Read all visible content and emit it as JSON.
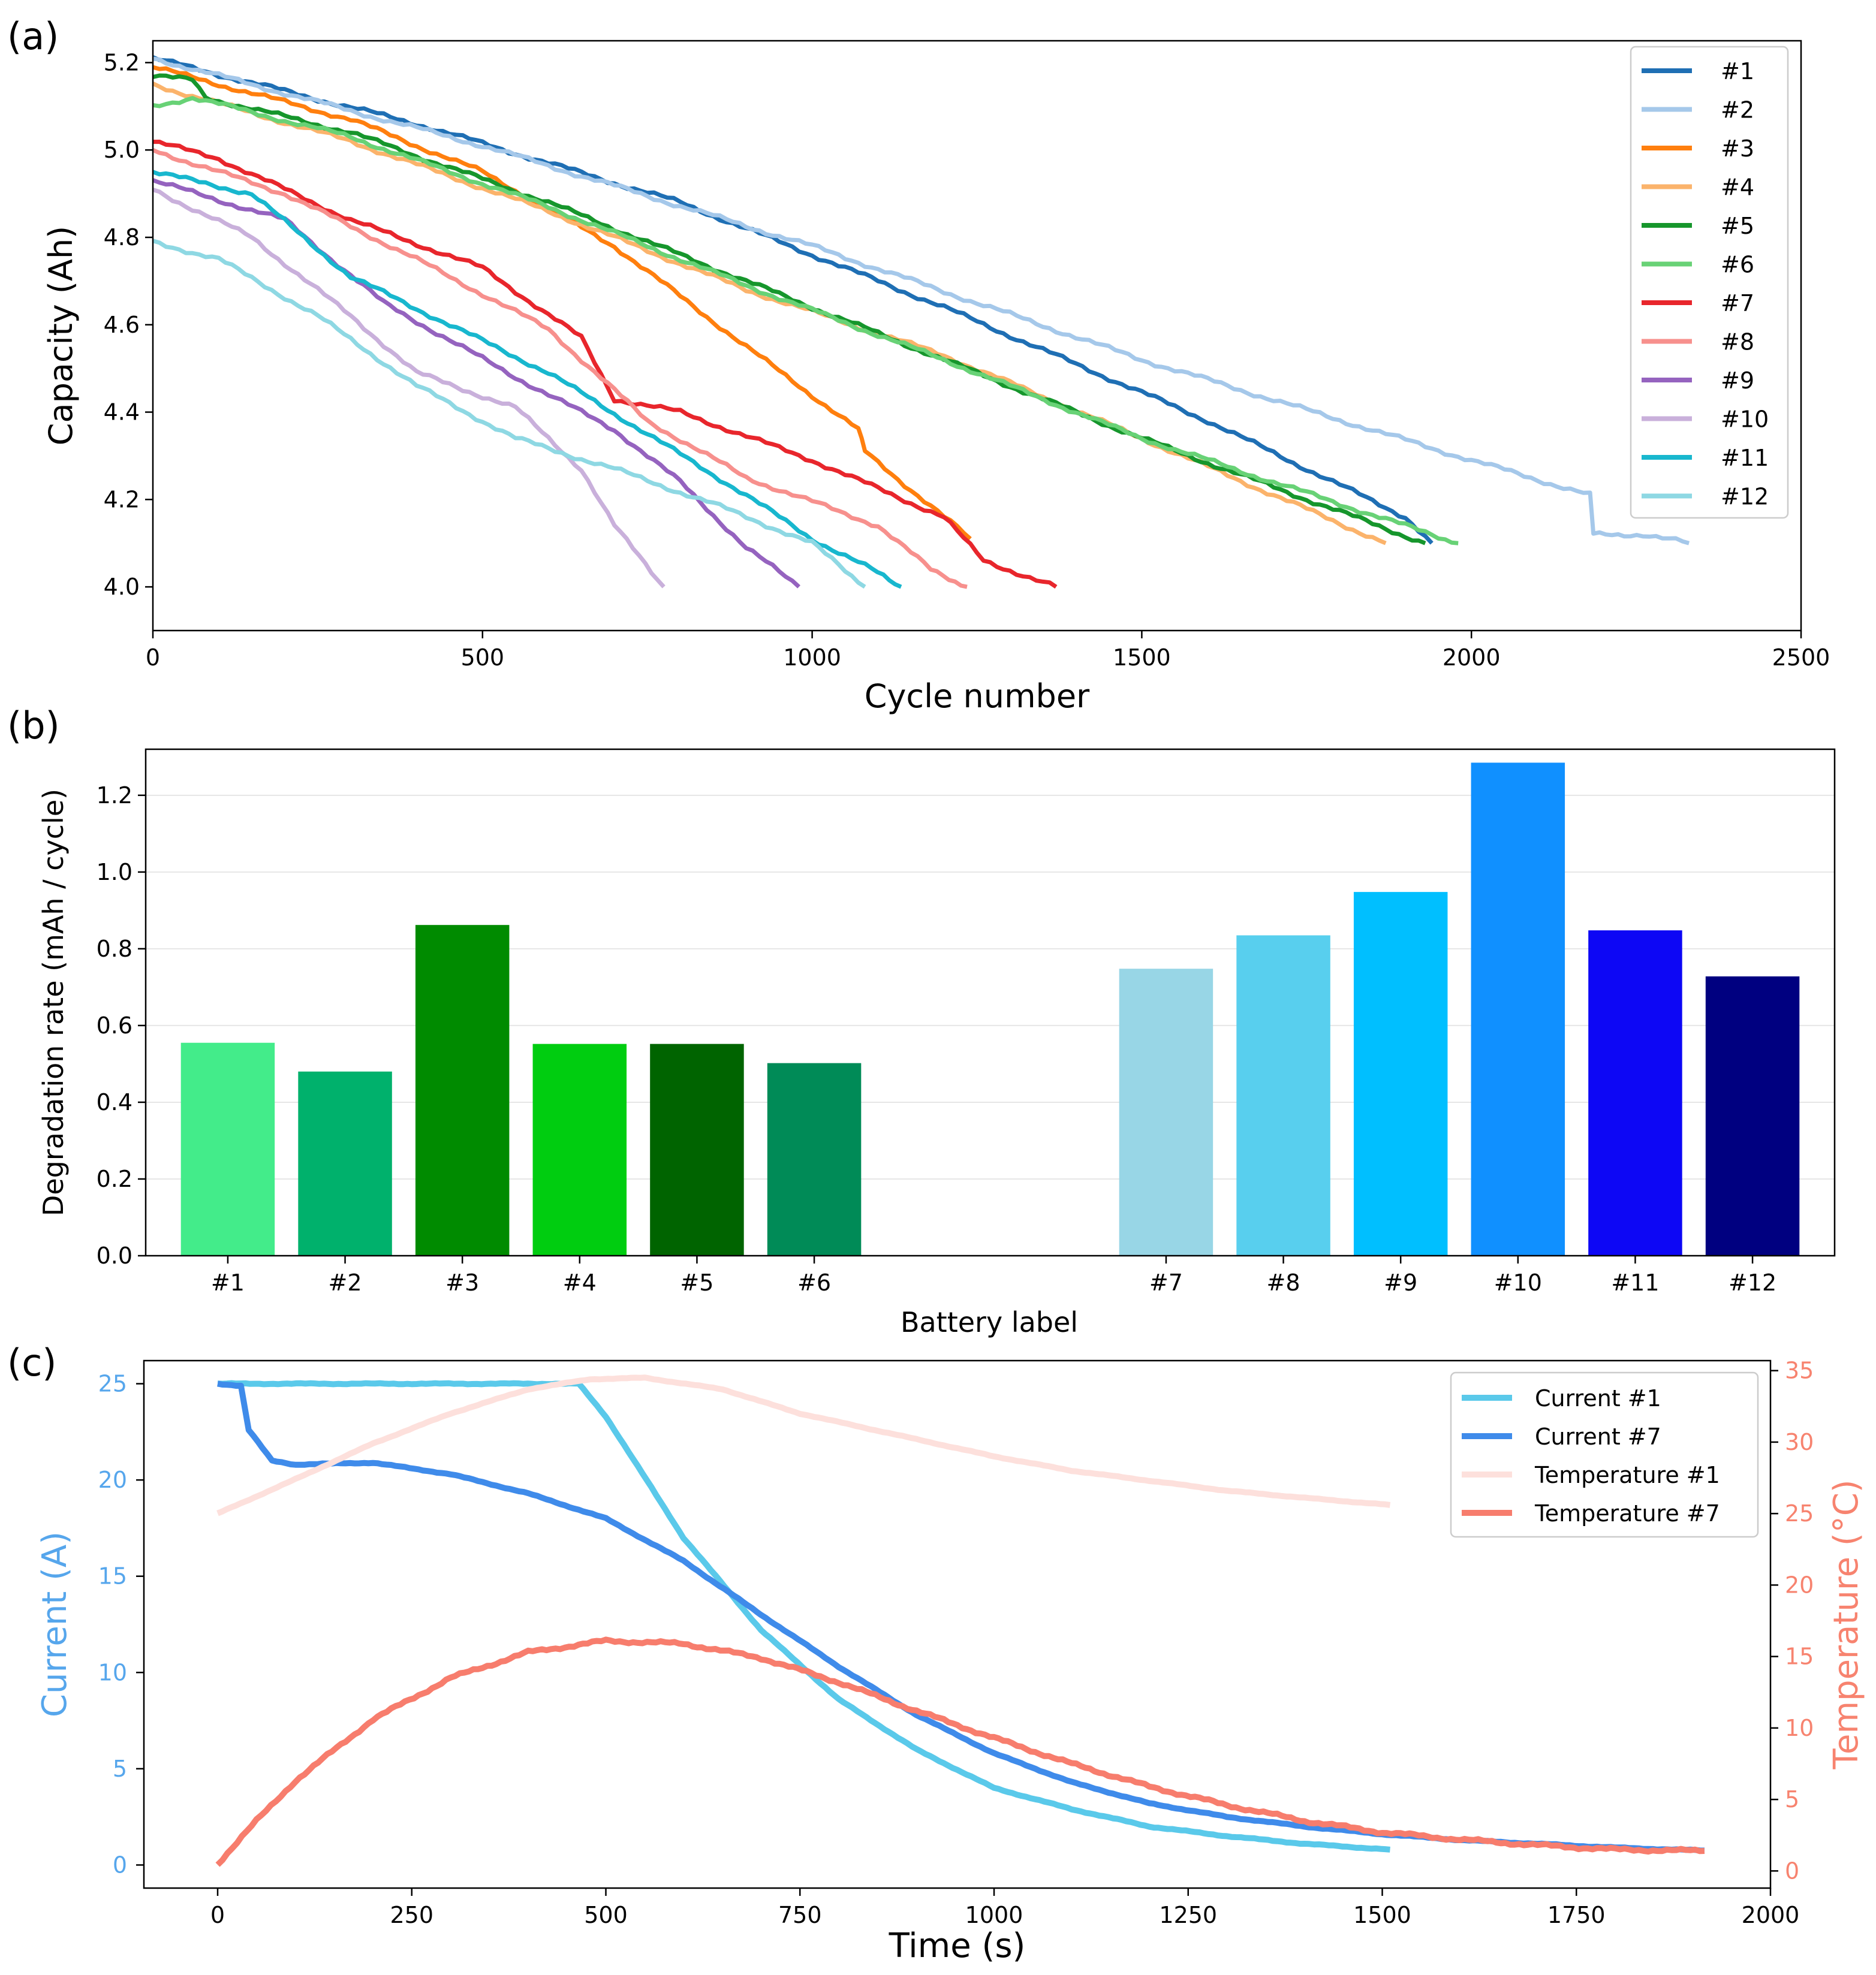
{
  "figure": {
    "panel_labels": [
      "(a)",
      "(b)",
      "(c)"
    ]
  },
  "chart_data": [
    {
      "type": "line",
      "panel": "(a)",
      "title": "",
      "xlabel": "Cycle number",
      "ylabel": "Capacity (Ah)",
      "xlim": [
        0,
        2500
      ],
      "ylim": [
        3.9,
        5.25
      ],
      "xticks": [
        0,
        500,
        1000,
        1500,
        2000,
        2500
      ],
      "yticks": [
        4.0,
        4.2,
        4.4,
        4.6,
        4.8,
        5.0,
        5.2
      ],
      "ytick_labels": [
        "4.0",
        "4.2",
        "4.4",
        "4.6",
        "4.8",
        "5.0",
        "5.2"
      ],
      "legend_position": "top-right",
      "series": [
        {
          "name": "#1",
          "color": "#1f6fb4",
          "points": [
            [
              0,
              5.21
            ],
            [
              400,
              5.06
            ],
            [
              800,
              4.88
            ],
            [
              1200,
              4.64
            ],
            [
              1600,
              4.38
            ],
            [
              1900,
              4.16
            ],
            [
              1940,
              4.1
            ]
          ]
        },
        {
          "name": "#2",
          "color": "#a5c8ea",
          "points": [
            [
              0,
              5.21
            ],
            [
              500,
              5.01
            ],
            [
              1000,
              4.78
            ],
            [
              1500,
              4.52
            ],
            [
              2000,
              4.29
            ],
            [
              2180,
              4.21
            ],
            [
              2185,
              4.12
            ],
            [
              2260,
              4.12
            ],
            [
              2330,
              4.1
            ]
          ]
        },
        {
          "name": "#3",
          "color": "#ff7f0e",
          "points": [
            [
              0,
              5.19
            ],
            [
              300,
              5.07
            ],
            [
              500,
              4.95
            ],
            [
              700,
              4.78
            ],
            [
              900,
              4.55
            ],
            [
              1070,
              4.36
            ],
            [
              1080,
              4.31
            ],
            [
              1240,
              4.11
            ]
          ]
        },
        {
          "name": "#4",
          "color": "#fbb36b",
          "points": [
            [
              0,
              5.15
            ],
            [
              300,
              5.02
            ],
            [
              600,
              4.86
            ],
            [
              900,
              4.68
            ],
            [
              1200,
              4.53
            ],
            [
              1500,
              4.34
            ],
            [
              1870,
              4.1
            ]
          ]
        },
        {
          "name": "#5",
          "color": "#16962c",
          "points": [
            [
              0,
              5.17
            ],
            [
              60,
              5.16
            ],
            [
              80,
              5.12
            ],
            [
              300,
              5.04
            ],
            [
              600,
              4.88
            ],
            [
              900,
              4.7
            ],
            [
              1200,
              4.52
            ],
            [
              1500,
              4.34
            ],
            [
              1930,
              4.1
            ]
          ]
        },
        {
          "name": "#6",
          "color": "#68d276",
          "points": [
            [
              0,
              5.1
            ],
            [
              60,
              5.12
            ],
            [
              300,
              5.03
            ],
            [
              600,
              4.87
            ],
            [
              900,
              4.69
            ],
            [
              1200,
              4.52
            ],
            [
              1500,
              4.34
            ],
            [
              1980,
              4.1
            ]
          ]
        },
        {
          "name": "#7",
          "color": "#e8262c",
          "points": [
            [
              0,
              5.02
            ],
            [
              100,
              4.98
            ],
            [
              300,
              4.84
            ],
            [
              500,
              4.73
            ],
            [
              650,
              4.57
            ],
            [
              700,
              4.43
            ],
            [
              800,
              4.4
            ],
            [
              1000,
              4.29
            ],
            [
              1200,
              4.16
            ],
            [
              1260,
              4.06
            ],
            [
              1370,
              4.0
            ]
          ]
        },
        {
          "name": "#8",
          "color": "#f7908d",
          "points": [
            [
              0,
              5.0
            ],
            [
              200,
              4.9
            ],
            [
              400,
              4.75
            ],
            [
              600,
              4.59
            ],
            [
              750,
              4.38
            ],
            [
              900,
              4.25
            ],
            [
              1100,
              4.14
            ],
            [
              1180,
              4.04
            ],
            [
              1235,
              4.0
            ]
          ]
        },
        {
          "name": "#9",
          "color": "#9563bf",
          "points": [
            [
              0,
              4.93
            ],
            [
              200,
              4.84
            ],
            [
              350,
              4.65
            ],
            [
              550,
              4.48
            ],
            [
              700,
              4.36
            ],
            [
              800,
              4.24
            ],
            [
              900,
              4.09
            ],
            [
              980,
              4.0
            ]
          ]
        },
        {
          "name": "#10",
          "color": "#c9b0db",
          "points": [
            [
              0,
              4.91
            ],
            [
              150,
              4.8
            ],
            [
              300,
              4.62
            ],
            [
              400,
              4.49
            ],
            [
              550,
              4.41
            ],
            [
              650,
              4.27
            ],
            [
              700,
              4.14
            ],
            [
              775,
              4.0
            ]
          ]
        },
        {
          "name": "#11",
          "color": "#18b7ce",
          "points": [
            [
              0,
              4.95
            ],
            [
              150,
              4.9
            ],
            [
              300,
              4.71
            ],
            [
              450,
              4.6
            ],
            [
              600,
              4.49
            ],
            [
              750,
              4.35
            ],
            [
              900,
              4.21
            ],
            [
              1000,
              4.11
            ],
            [
              1090,
              4.04
            ],
            [
              1135,
              4.0
            ]
          ]
        },
        {
          "name": "#12",
          "color": "#8ed8e3",
          "points": [
            [
              0,
              4.79
            ],
            [
              100,
              4.75
            ],
            [
              250,
              4.62
            ],
            [
              400,
              4.46
            ],
            [
              550,
              4.34
            ],
            [
              700,
              4.27
            ],
            [
              850,
              4.19
            ],
            [
              1000,
              4.1
            ],
            [
              1080,
              4.0
            ]
          ]
        }
      ]
    },
    {
      "type": "bar",
      "panel": "(b)",
      "title": "",
      "xlabel": "Battery label",
      "ylabel": "Degradation rate (mAh / cycle)",
      "ylim": [
        0,
        1.32
      ],
      "yticks": [
        0.0,
        0.2,
        0.4,
        0.6,
        0.8,
        1.0,
        1.2
      ],
      "ytick_labels": [
        "0.0",
        "0.2",
        "0.4",
        "0.6",
        "0.8",
        "1.0",
        "1.2"
      ],
      "grid": true,
      "categories": [
        "#1",
        "#2",
        "#3",
        "#4",
        "#5",
        "#6",
        "#7",
        "#8",
        "#9",
        "#10",
        "#11",
        "#12"
      ],
      "positions": [
        0,
        1,
        2,
        3,
        4,
        5,
        8,
        9,
        10,
        11,
        12,
        13
      ],
      "xlim": [
        -0.7,
        13.7
      ],
      "values": [
        0.555,
        0.48,
        0.862,
        0.552,
        0.552,
        0.502,
        0.748,
        0.835,
        0.948,
        1.285,
        0.848,
        0.728
      ],
      "colors": [
        "#43ec8a",
        "#00b16c",
        "#008b00",
        "#00cd10",
        "#006400",
        "#008b57",
        "#98d6e6",
        "#58cfee",
        "#00bfff",
        "#1090ff",
        "#0d07f5",
        "#000080"
      ]
    },
    {
      "type": "line",
      "panel": "(c)",
      "title": "",
      "xlabel": "Time (s)",
      "ylabel": "Current (A)",
      "ylabel_right": "Temperature (°C)",
      "xlim": [
        -95,
        2000
      ],
      "ylim": [
        -1.2,
        26.2
      ],
      "ylim_right": [
        -1.2,
        35.7
      ],
      "xticks": [
        0,
        250,
        500,
        750,
        1000,
        1250,
        1500,
        1750,
        2000
      ],
      "yticks": [
        0,
        5,
        10,
        15,
        20,
        25
      ],
      "yticks_right": [
        0,
        5,
        10,
        15,
        20,
        25,
        30,
        35
      ],
      "ylabel_color": "#56a6ec",
      "ylabel_right_color": "#f7836f",
      "legend_position": "top-right",
      "series": [
        {
          "name": "Current #1",
          "axis": "left",
          "color": "#5ac9ea",
          "points": [
            [
              0,
              25.0
            ],
            [
              465,
              25.0
            ],
            [
              500,
              23.3
            ],
            [
              600,
              17.0
            ],
            [
              700,
              12.2
            ],
            [
              800,
              8.6
            ],
            [
              900,
              6.0
            ],
            [
              1000,
              4.0
            ],
            [
              1100,
              2.9
            ],
            [
              1200,
              2.0
            ],
            [
              1300,
              1.5
            ],
            [
              1400,
              1.1
            ],
            [
              1510,
              0.8
            ]
          ]
        },
        {
          "name": "Current #7",
          "axis": "left",
          "color": "#3f8bea",
          "points": [
            [
              0,
              25.0
            ],
            [
              30,
              24.9
            ],
            [
              40,
              22.6
            ],
            [
              70,
              21.0
            ],
            [
              100,
              20.8
            ],
            [
              200,
              20.9
            ],
            [
              300,
              20.3
            ],
            [
              400,
              19.3
            ],
            [
              500,
              18.0
            ],
            [
              600,
              15.8
            ],
            [
              700,
              13.0
            ],
            [
              800,
              10.3
            ],
            [
              900,
              7.8
            ],
            [
              1000,
              5.8
            ],
            [
              1100,
              4.3
            ],
            [
              1200,
              3.2
            ],
            [
              1300,
              2.5
            ],
            [
              1400,
              2.0
            ],
            [
              1500,
              1.6
            ],
            [
              1600,
              1.3
            ],
            [
              1700,
              1.1
            ],
            [
              1800,
              0.9
            ],
            [
              1915,
              0.75
            ]
          ]
        },
        {
          "name": "Temperature #1",
          "axis": "right",
          "color": "#fde0dc",
          "points": [
            [
              0,
              25.0
            ],
            [
              100,
              27.4
            ],
            [
              200,
              29.9
            ],
            [
              300,
              32.0
            ],
            [
              400,
              33.7
            ],
            [
              480,
              34.4
            ],
            [
              550,
              34.5
            ],
            [
              650,
              33.7
            ],
            [
              750,
              32.0
            ],
            [
              900,
              30.2
            ],
            [
              1000,
              29.0
            ],
            [
              1100,
              28.0
            ],
            [
              1200,
              27.3
            ],
            [
              1300,
              26.6
            ],
            [
              1400,
              26.1
            ],
            [
              1510,
              25.6
            ]
          ]
        },
        {
          "name": "Temperature #7",
          "axis": "right",
          "color": "#f77d6d",
          "points": [
            [
              0,
              0.5
            ],
            [
              50,
              3.5
            ],
            [
              100,
              6.3
            ],
            [
              200,
              10.6
            ],
            [
              300,
              13.5
            ],
            [
              400,
              15.3
            ],
            [
              500,
              16.1
            ],
            [
              600,
              15.9
            ],
            [
              700,
              14.9
            ],
            [
              800,
              13.2
            ],
            [
              900,
              11.2
            ],
            [
              1000,
              9.3
            ],
            [
              1100,
              7.5
            ],
            [
              1200,
              5.9
            ],
            [
              1300,
              4.6
            ],
            [
              1400,
              3.5
            ],
            [
              1500,
              2.7
            ],
            [
              1600,
              2.2
            ],
            [
              1700,
              1.8
            ],
            [
              1800,
              1.5
            ],
            [
              1915,
              1.4
            ]
          ]
        }
      ]
    }
  ]
}
